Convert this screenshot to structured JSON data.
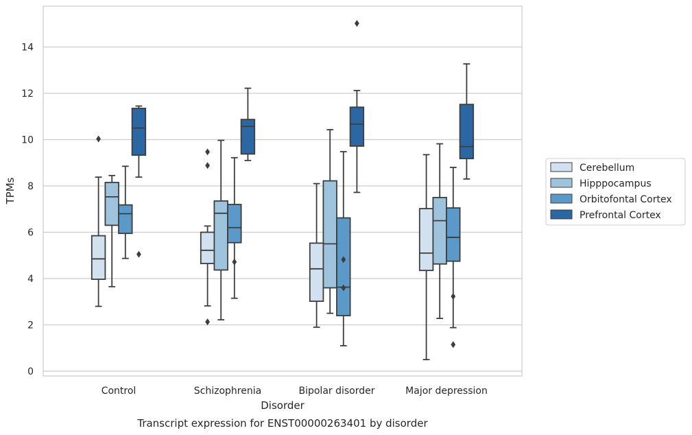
{
  "chart_data": {
    "type": "box",
    "title": "",
    "caption": "Transcript expression for ENST00000263401 by disorder",
    "xlabel": "Disorder",
    "ylabel": "TPMs",
    "ylim": [
      -0.2,
      15.9
    ],
    "yticks": [
      0,
      2,
      4,
      6,
      8,
      10,
      12,
      14
    ],
    "grid": "horizontal",
    "legend_position": "right",
    "categories": [
      "Control",
      "Schizophrenia",
      "Bipolar disorder",
      "Major depression"
    ],
    "series": [
      {
        "name": "Cerebellum",
        "color": "#d1e1f0",
        "boxes": [
          {
            "whisker_low": 2.8,
            "q1": 3.97,
            "median": 4.85,
            "q3": 5.85,
            "whisker_high": 8.38,
            "outliers": [
              10.03
            ]
          },
          {
            "whisker_low": 2.82,
            "q1": 4.65,
            "median": 5.22,
            "q3": 6.0,
            "whisker_high": 6.27,
            "outliers": [
              9.47,
              8.88,
              2.13
            ]
          },
          {
            "whisker_low": 1.9,
            "q1": 3.02,
            "median": 4.42,
            "q3": 5.53,
            "whisker_high": 8.1,
            "outliers": []
          },
          {
            "whisker_low": 0.5,
            "q1": 4.35,
            "median": 5.1,
            "q3": 7.02,
            "whisker_high": 9.35,
            "outliers": []
          }
        ]
      },
      {
        "name": "Hipppocampus",
        "color": "#9ec3dc",
        "boxes": [
          {
            "whisker_low": 3.65,
            "q1": 6.3,
            "median": 7.53,
            "q3": 8.15,
            "whisker_high": 8.45,
            "outliers": []
          },
          {
            "whisker_low": 2.22,
            "q1": 4.37,
            "median": 6.82,
            "q3": 7.35,
            "whisker_high": 9.97,
            "outliers": []
          },
          {
            "whisker_low": 2.5,
            "q1": 3.6,
            "median": 5.5,
            "q3": 8.22,
            "whisker_high": 10.43,
            "outliers": []
          },
          {
            "whisker_low": 2.28,
            "q1": 4.63,
            "median": 6.5,
            "q3": 7.5,
            "whisker_high": 9.82,
            "outliers": []
          }
        ]
      },
      {
        "name": "Orbitofontal Cortex",
        "color": "#5b9ac8",
        "boxes": [
          {
            "whisker_low": 4.87,
            "q1": 5.95,
            "median": 6.8,
            "q3": 7.18,
            "whisker_high": 8.85,
            "outliers": []
          },
          {
            "whisker_low": 3.15,
            "q1": 5.55,
            "median": 6.2,
            "q3": 7.2,
            "whisker_high": 9.22,
            "outliers": [
              4.72
            ]
          },
          {
            "whisker_low": 1.1,
            "q1": 2.4,
            "median": 3.63,
            "q3": 6.62,
            "whisker_high": 9.48,
            "outliers": [
              4.82,
              3.6
            ]
          },
          {
            "whisker_low": 1.88,
            "q1": 4.75,
            "median": 5.78,
            "q3": 7.05,
            "whisker_high": 8.8,
            "outliers": [
              3.23,
              1.15
            ]
          }
        ]
      },
      {
        "name": "Prefrontal Cortex",
        "color": "#2a67a3",
        "boxes": [
          {
            "whisker_low": 8.38,
            "q1": 9.33,
            "median": 10.5,
            "q3": 11.35,
            "whisker_high": 11.45,
            "outliers": [
              5.05
            ]
          },
          {
            "whisker_low": 9.1,
            "q1": 9.38,
            "median": 10.57,
            "q3": 10.87,
            "whisker_high": 12.22,
            "outliers": []
          },
          {
            "whisker_low": 7.72,
            "q1": 9.72,
            "median": 10.67,
            "q3": 11.4,
            "whisker_high": 12.12,
            "outliers": [
              15.02
            ]
          },
          {
            "whisker_low": 8.3,
            "q1": 9.18,
            "median": 9.7,
            "q3": 11.52,
            "whisker_high": 13.27,
            "outliers": []
          }
        ]
      }
    ]
  }
}
